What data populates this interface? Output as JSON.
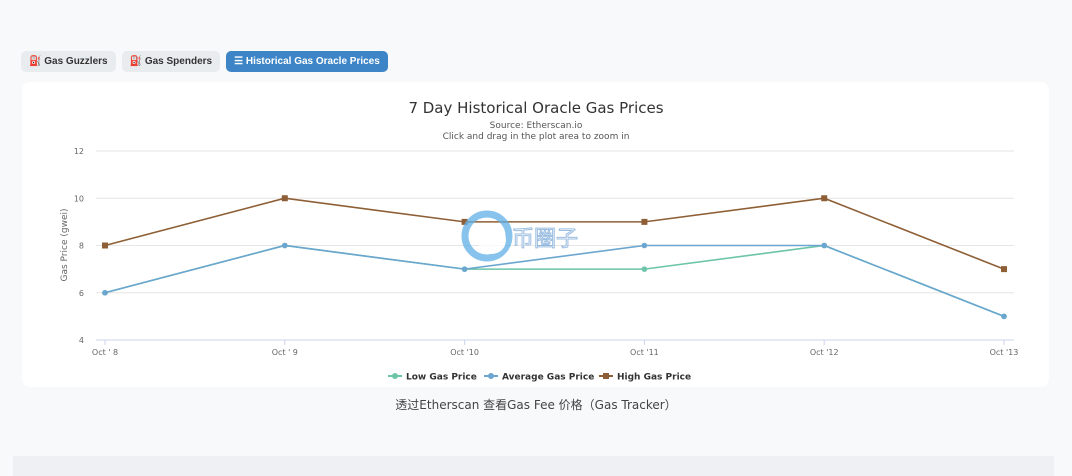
{
  "tabs": [
    {
      "label": "Gas Guzzlers",
      "icon": "gas-pump-icon"
    },
    {
      "label": "Gas Spenders",
      "icon": "gas-pump-icon"
    },
    {
      "label": "Historical Gas Oracle Prices",
      "icon": "list-icon",
      "active": true
    }
  ],
  "caption": "透过Etherscan 查看Gas Fee 价格（Gas Tracker）",
  "watermark": "币圈子",
  "chart_data": {
    "type": "line",
    "title": "7 Day Historical Oracle Gas Prices",
    "subtitle": "Source: Etherscan.io",
    "hint": "Click and drag in the plot area to zoom in",
    "ylabel": "Gas Price (gwei)",
    "ylim": [
      4,
      12
    ],
    "yticks": [
      "4",
      "6",
      "8",
      "10",
      "12"
    ],
    "categories": [
      "Oct ' 8",
      "Oct ' 9",
      "Oct '10",
      "Oct '11",
      "Oct '12",
      "Oct '13"
    ],
    "grid": true,
    "legend": "bottom",
    "series": [
      {
        "name": "Low Gas Price",
        "color": "#6cc4a9",
        "marker": "circle",
        "values": [
          6,
          8,
          7,
          7,
          8,
          5
        ]
      },
      {
        "name": "Average Gas Price",
        "color": "#6aa6cf",
        "marker": "circle",
        "values": [
          6,
          8,
          7,
          8,
          8,
          5
        ]
      },
      {
        "name": "High Gas Price",
        "color": "#8e5f36",
        "marker": "square",
        "values": [
          8,
          10,
          9,
          9,
          10,
          7
        ]
      }
    ]
  }
}
